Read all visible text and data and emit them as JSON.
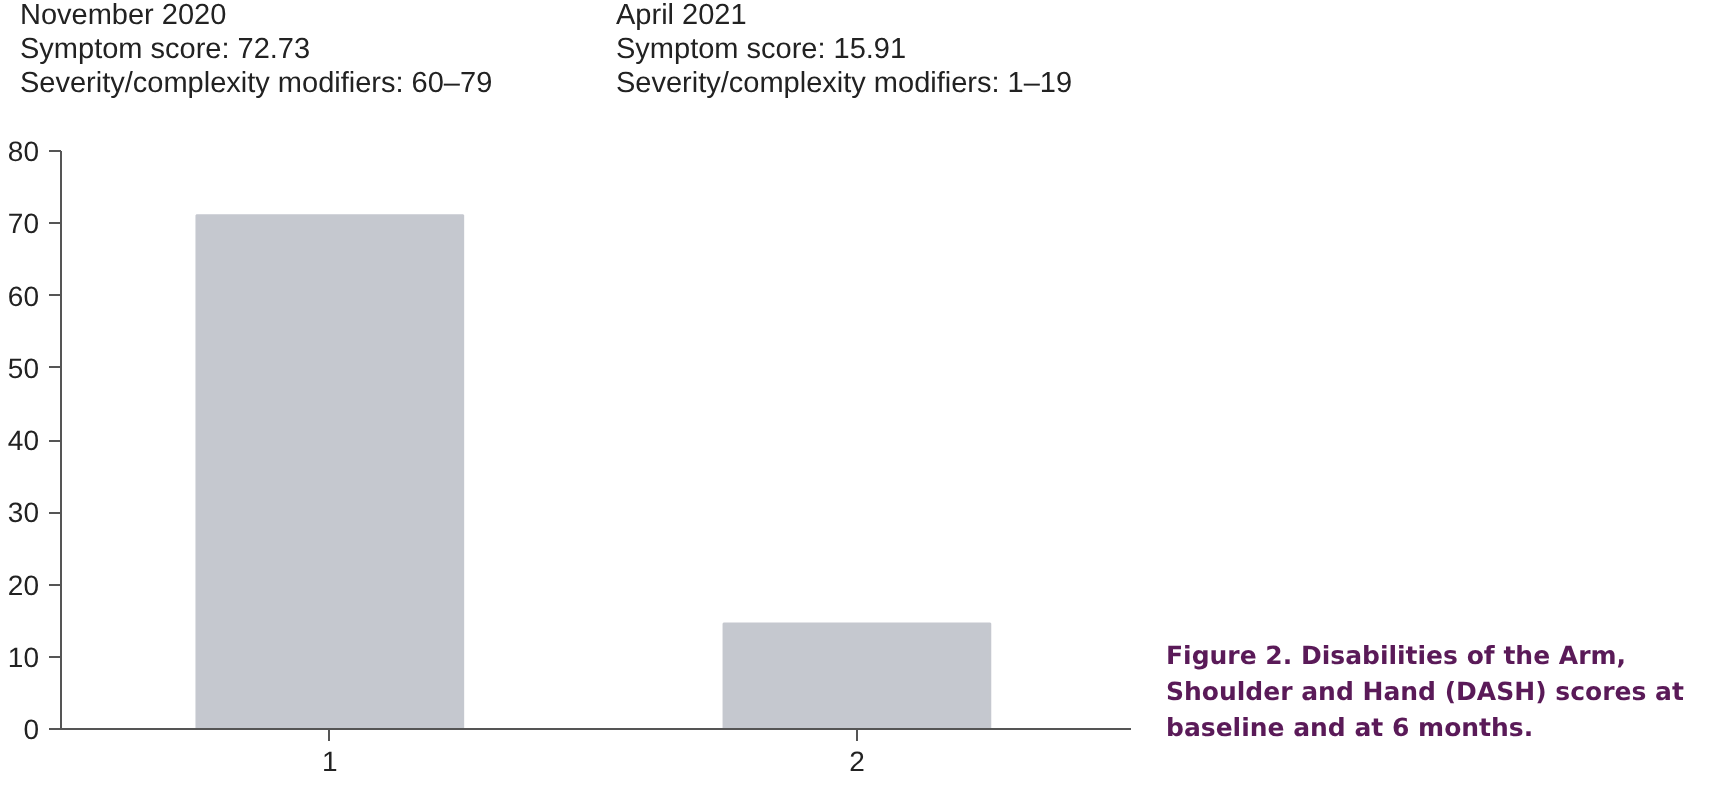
{
  "chart_data": {
    "type": "bar",
    "categories": [
      "1",
      "2"
    ],
    "values": [
      71.1,
      14.6
    ],
    "color": "#c5c8cf",
    "ylim": [
      0,
      80
    ],
    "yticks": [
      0,
      10,
      20,
      30,
      40,
      50,
      60,
      70,
      80
    ],
    "grid": false,
    "annotations": [
      "November 2020\nSymptom score: 72.73\nSeverity/complexity modifiers: 60–79",
      "April 2021\nSymptom score: 15.91\nSeverity/complexity modifiers: 1–19",
      "Figure 2.    Disabilities of the Arm, Shoulder and Hand (DASH) scores at baseline and at 6 months."
    ]
  }
}
